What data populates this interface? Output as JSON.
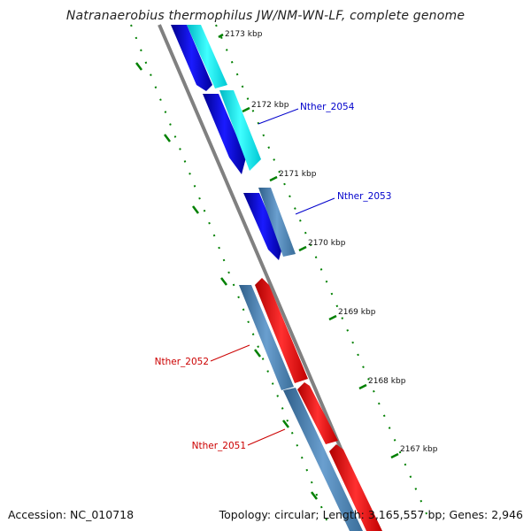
{
  "title": "Natranaerobius thermophilus JW/NM-WN-LF, complete genome",
  "accession": "Accession: NC_010718",
  "summary": "Topology: circular; Length: 3,165,557 bp; Genes: 2,946",
  "ticks": [
    "2173 kbp",
    "2172 kbp",
    "2171 kbp",
    "2170 kbp",
    "2169 kbp",
    "2168 kbp",
    "2167 kbp"
  ],
  "gene_labels": [
    {
      "name": "Nther_2054",
      "color": "#0000cc"
    },
    {
      "name": "Nther_2053",
      "color": "#0000cc"
    },
    {
      "name": "Nther_2052",
      "color": "#cc0000"
    },
    {
      "name": "Nther_2051",
      "color": "#cc0000"
    }
  ],
  "colors": {
    "forward_cds": "#ff0000",
    "reverse_cds": "#0000ee",
    "cyan_track": "#00e5ee",
    "steel_track": "#4682b4",
    "backbone": "#808080",
    "ruler": "#008000"
  }
}
